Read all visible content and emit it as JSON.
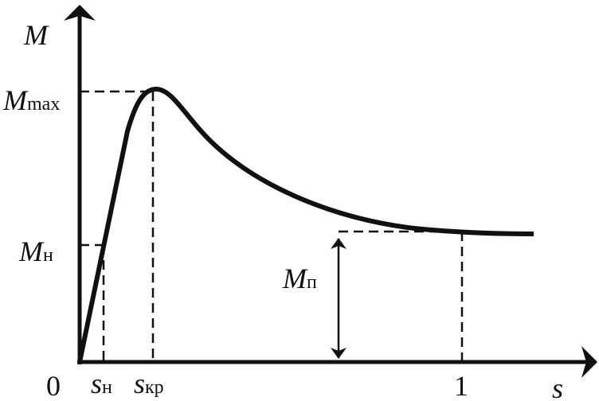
{
  "labels": {
    "y_axis": "M",
    "x_axis": "s",
    "origin": "0",
    "one": "1",
    "m_max": {
      "main": "M",
      "sub": "max"
    },
    "m_nom": {
      "main": "M",
      "sub": "н"
    },
    "m_start": {
      "main": "M",
      "sub": "п"
    },
    "s_nom": {
      "main": "s",
      "sub": "н"
    },
    "s_crit": {
      "main": "s",
      "sub": "кр"
    }
  }
}
